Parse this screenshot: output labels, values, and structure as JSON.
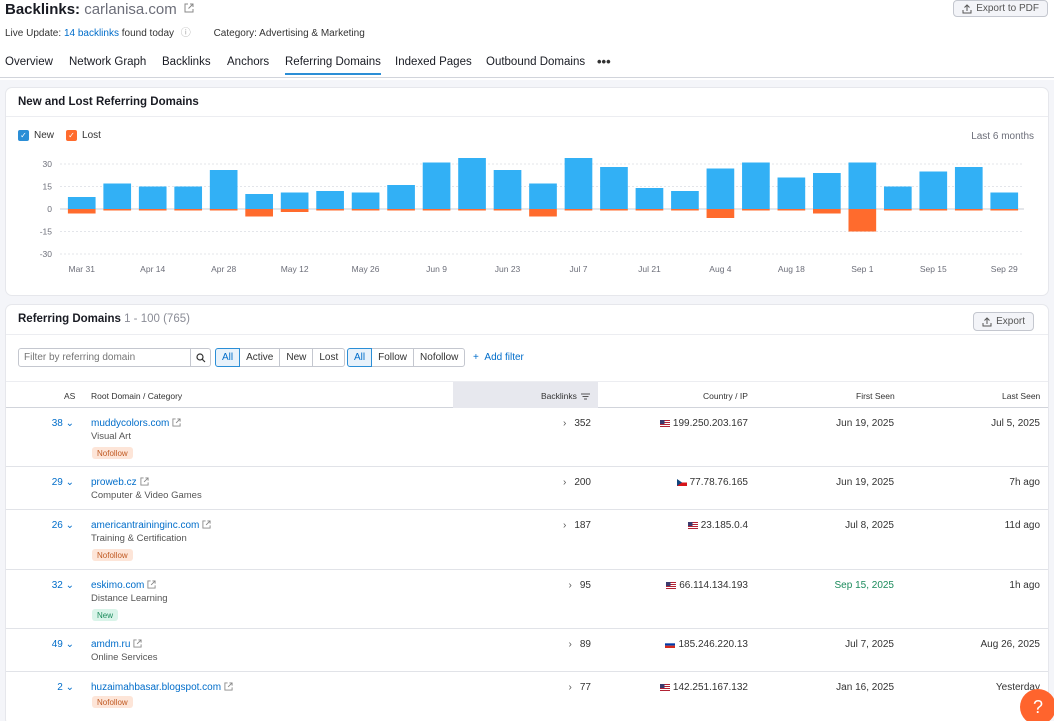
{
  "header": {
    "title_prefix": "Backlinks:",
    "domain": "carlanisa.com",
    "live_update_label": "Live Update:",
    "live_update_link": "14 backlinks",
    "live_update_suffix": "found today",
    "category": "Category: Advertising & Marketing",
    "export_pdf_label": "Export to PDF"
  },
  "tabs": [
    {
      "label": "Overview",
      "active": false
    },
    {
      "label": "Network Graph",
      "active": false
    },
    {
      "label": "Backlinks",
      "active": false
    },
    {
      "label": "Anchors",
      "active": false
    },
    {
      "label": "Referring Domains",
      "active": true
    },
    {
      "label": "Indexed Pages",
      "active": false
    },
    {
      "label": "Outbound Domains",
      "active": false
    }
  ],
  "tab_more": "•••",
  "chart_card": {
    "title": "New and Lost Referring Domains",
    "legend_new": "New",
    "legend_lost": "Lost",
    "range_label": "Last 6 months"
  },
  "chart_data": {
    "type": "bar",
    "series": [
      {
        "name": "New",
        "color": "#32b0f5",
        "values": [
          8,
          17,
          15,
          15,
          26,
          10,
          11,
          12,
          11,
          16,
          31,
          34,
          26,
          17,
          34,
          28,
          14,
          12,
          27,
          31,
          21,
          24,
          31,
          15,
          25,
          28,
          11
        ]
      },
      {
        "name": "Lost",
        "color": "#ff6b2d",
        "values": [
          -3,
          -1,
          -1,
          -1,
          -1,
          -5,
          -2,
          -1,
          -1,
          -1,
          -1,
          -1,
          -1,
          -5,
          -1,
          -1,
          -1,
          -1,
          -6,
          -1,
          -1,
          -3,
          -15,
          -1,
          -1,
          -1,
          -1
        ]
      }
    ],
    "y_ticks": [
      30,
      15,
      0,
      -15,
      -30
    ],
    "ylim": [
      -30,
      30
    ],
    "x_labels": [
      {
        "label": "Mar 31",
        "index": 0
      },
      {
        "label": "Apr 14",
        "index": 2
      },
      {
        "label": "Apr 28",
        "index": 4
      },
      {
        "label": "May 12",
        "index": 6
      },
      {
        "label": "May 26",
        "index": 8
      },
      {
        "label": "Jun 9",
        "index": 10
      },
      {
        "label": "Jun 23",
        "index": 12
      },
      {
        "label": "Jul 7",
        "index": 14
      },
      {
        "label": "Jul 21",
        "index": 16
      },
      {
        "label": "Aug 4",
        "index": 18
      },
      {
        "label": "Aug 18",
        "index": 20
      },
      {
        "label": "Sep 1",
        "index": 22
      },
      {
        "label": "Sep 15",
        "index": 24
      },
      {
        "label": "Sep 29",
        "index": 26
      }
    ],
    "grid": true,
    "legend": "top-left"
  },
  "table_card": {
    "title": "Referring Domains",
    "range": "1 - 100 (765)",
    "export_label": "Export",
    "filter_placeholder": "Filter by referring domain",
    "status_filters": [
      "All",
      "Active",
      "New",
      "Lost"
    ],
    "follow_filters": [
      "All",
      "Follow",
      "Nofollow"
    ],
    "add_filter_label": "Add filter",
    "columns": {
      "as": "AS",
      "root": "Root Domain / Category",
      "backlinks": "Backlinks",
      "country": "Country / IP",
      "first_seen": "First Seen",
      "last_seen": "Last Seen"
    },
    "rows": [
      {
        "as": "38",
        "domain": "muddycolors.com",
        "category": "Visual Art",
        "badge": "Nofollow",
        "backlinks": "352",
        "ip": "199.250.203.167",
        "flag": "us",
        "first_seen": "Jun 19, 2025",
        "last_seen": "Jul 5, 2025"
      },
      {
        "as": "29",
        "domain": "proweb.cz",
        "category": "Computer & Video Games",
        "badge": "",
        "backlinks": "200",
        "ip": "77.78.76.165",
        "flag": "cz",
        "first_seen": "Jun 19, 2025",
        "last_seen": "7h ago"
      },
      {
        "as": "26",
        "domain": "americantraininginc.com",
        "category": "Training & Certification",
        "badge": "Nofollow",
        "backlinks": "187",
        "ip": "23.185.0.4",
        "flag": "us",
        "first_seen": "Jul 8, 2025",
        "last_seen": "11d ago"
      },
      {
        "as": "32",
        "domain": "eskimo.com",
        "category": "Distance Learning",
        "badge": "New",
        "backlinks": "95",
        "ip": "66.114.134.193",
        "flag": "us",
        "first_seen": "Sep 15, 2025",
        "last_seen": "1h ago"
      },
      {
        "as": "49",
        "domain": "amdm.ru",
        "category": "Online Services",
        "badge": "",
        "backlinks": "89",
        "ip": "185.246.220.13",
        "flag": "ru",
        "first_seen": "Jul 7, 2025",
        "last_seen": "Aug 26, 2025"
      },
      {
        "as": "2",
        "domain": "huzaimahbasar.blogspot.com",
        "category": "",
        "badge": "Nofollow",
        "backlinks": "77",
        "ip": "142.251.167.132",
        "flag": "us",
        "first_seen": "Jan 16, 2025",
        "last_seen": "Yesterday"
      }
    ]
  },
  "help_label": "?"
}
